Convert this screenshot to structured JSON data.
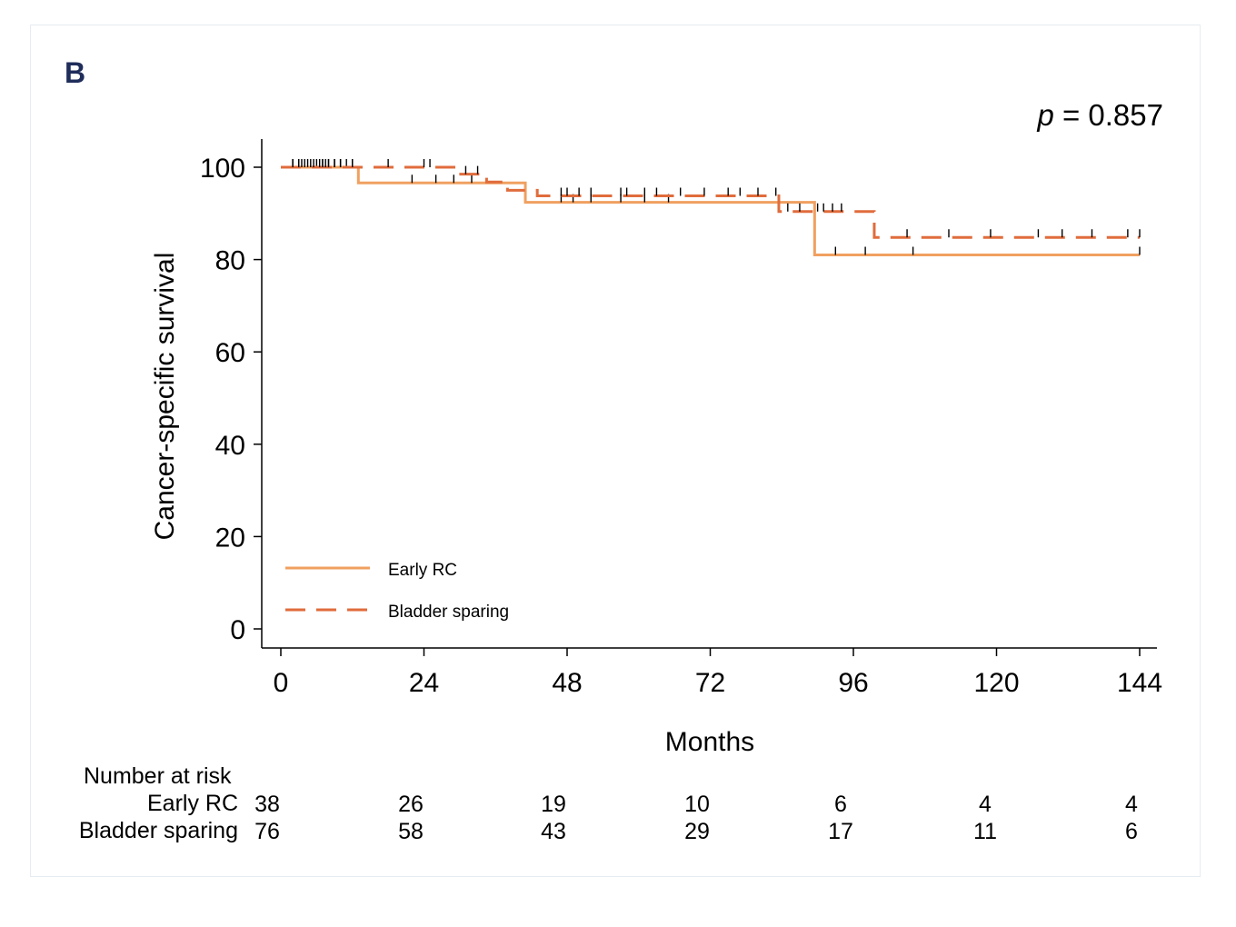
{
  "panel_label": "B",
  "p_value": {
    "symbol": "p",
    "text": " = 0.857"
  },
  "risk_table": {
    "title": "Number at risk",
    "rows": [
      {
        "name": "Early RC",
        "counts": [
          "38",
          "26",
          "19",
          "10",
          "6",
          "4",
          "4"
        ]
      },
      {
        "name": "Bladder sparing",
        "counts": [
          "76",
          "58",
          "43",
          "29",
          "17",
          "11",
          "6"
        ]
      }
    ]
  },
  "chart_data": {
    "type": "line",
    "title": "",
    "xlabel": "Months",
    "ylabel": "Cancer-specific survival",
    "xlim": [
      0,
      144
    ],
    "ylim": [
      0,
      100
    ],
    "xticks": [
      0,
      24,
      48,
      72,
      96,
      120,
      144
    ],
    "yticks": [
      0,
      20,
      40,
      60,
      80,
      100
    ],
    "grid": false,
    "legend": "bottom-left",
    "colors": {
      "early_rc": "#f0a060",
      "bladder_sparing": "#e06c3c"
    },
    "series": [
      {
        "name": "Early RC",
        "style": "solid",
        "steps": [
          [
            0,
            100
          ],
          [
            13,
            96.6
          ],
          [
            41,
            92.4
          ],
          [
            89.5,
            81
          ],
          [
            144,
            81
          ]
        ],
        "censor": [
          2,
          3,
          4,
          5,
          6,
          7,
          8,
          9,
          10,
          11,
          12,
          22,
          26,
          29,
          32,
          47,
          49,
          52,
          57,
          61,
          65,
          93,
          98,
          106,
          144
        ]
      },
      {
        "name": "Bladder sparing",
        "style": "dashed",
        "steps": [
          [
            0,
            100
          ],
          [
            29.5,
            98.5
          ],
          [
            34.5,
            96.8
          ],
          [
            38,
            95
          ],
          [
            43,
            93.8
          ],
          [
            83.5,
            90.4
          ],
          [
            99.5,
            84.8
          ],
          [
            144,
            84.8
          ]
        ],
        "censor": [
          2,
          3,
          3.5,
          4.5,
          5.5,
          6.5,
          7,
          7.5,
          8,
          9,
          10,
          12,
          18,
          24,
          25,
          31,
          33,
          47,
          48,
          50,
          52,
          57,
          58,
          61,
          63,
          67,
          71,
          75,
          77,
          80,
          83,
          85,
          87,
          90,
          91,
          92.5,
          94,
          105,
          112,
          119,
          127,
          131,
          136,
          142,
          144
        ]
      }
    ]
  }
}
